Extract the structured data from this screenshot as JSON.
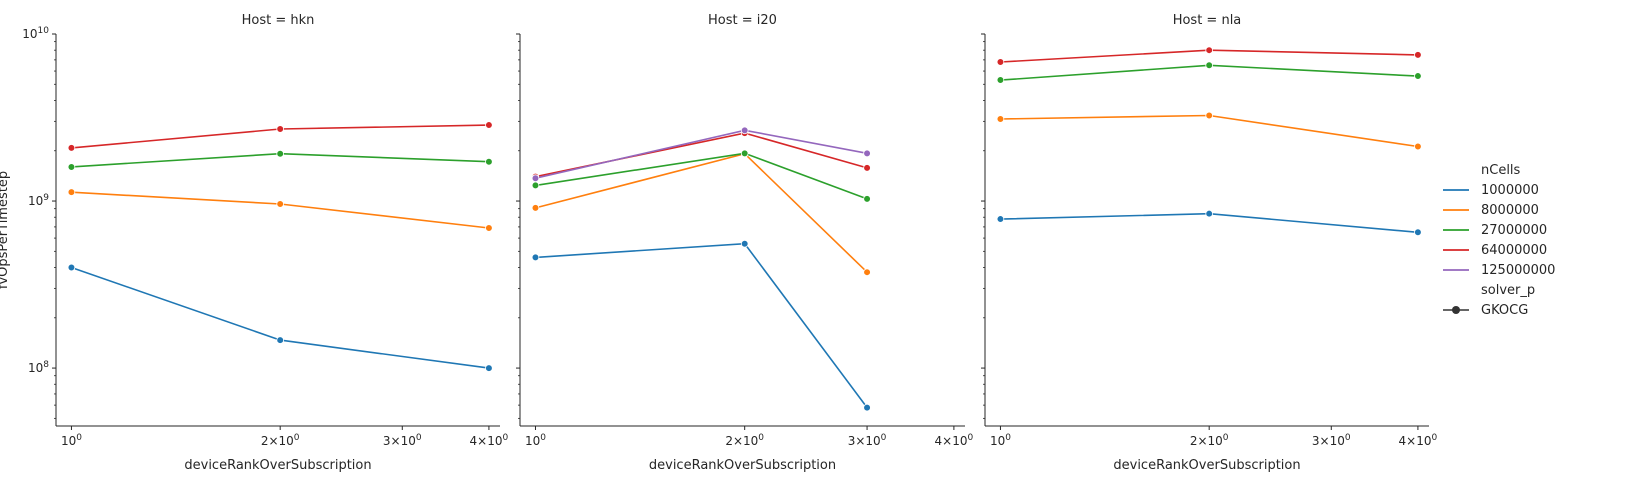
{
  "chart_data": {
    "type": "line",
    "scale": {
      "x": "log",
      "y": "log"
    },
    "xlabel": "deviceRankOverSubscription",
    "ylabel": "fvOpsPerTimestep",
    "ylim": [
      45000000,
      10000000000
    ],
    "y_ticks": [
      {
        "value": 100000000,
        "base": "10",
        "exp": "8"
      },
      {
        "value": 1000000000,
        "base": "10",
        "exp": "9"
      },
      {
        "value": 10000000000,
        "base": "10",
        "exp": "10"
      }
    ],
    "x_ticks": [
      {
        "value": 1,
        "coef": "",
        "base": "10",
        "exp": "0"
      },
      {
        "value": 2,
        "coef": "2×",
        "base": "10",
        "exp": "0"
      },
      {
        "value": 3,
        "coef": "3×",
        "base": "10",
        "exp": "0"
      },
      {
        "value": 4,
        "coef": "4×",
        "base": "10",
        "exp": "0"
      }
    ],
    "legend": {
      "position": "right",
      "hue_title": "nCells",
      "style_title": "solver_p",
      "style_entries": [
        "GKOCG"
      ]
    },
    "series_styles": [
      {
        "name": "1000000",
        "color": "#1f77b4"
      },
      {
        "name": "8000000",
        "color": "#ff7f0e"
      },
      {
        "name": "27000000",
        "color": "#2ca02c"
      },
      {
        "name": "64000000",
        "color": "#d62728"
      },
      {
        "name": "125000000",
        "color": "#9467bd"
      }
    ],
    "panels": [
      {
        "title": "Host = hkn",
        "xlim": [
          0.95,
          4.15
        ],
        "x": [
          1,
          2,
          4
        ],
        "series": [
          {
            "name": "1000000",
            "values": [
              400000000,
              147000000,
              100000000
            ]
          },
          {
            "name": "8000000",
            "values": [
              1130000000,
              960000000,
              690000000
            ]
          },
          {
            "name": "27000000",
            "values": [
              1600000000,
              1920000000,
              1720000000
            ]
          },
          {
            "name": "64000000",
            "values": [
              2080000000,
              2700000000,
              2850000000
            ]
          }
        ]
      },
      {
        "title": "Host = i20",
        "xlim": [
          0.95,
          4.15
        ],
        "x": [
          1,
          2,
          3
        ],
        "series": [
          {
            "name": "1000000",
            "values": [
              460000000,
              555000000,
              58000000
            ]
          },
          {
            "name": "8000000",
            "values": [
              910000000,
              1920000000,
              375000000
            ]
          },
          {
            "name": "27000000",
            "values": [
              1240000000,
              1930000000,
              1030000000
            ]
          },
          {
            "name": "64000000",
            "values": [
              1400000000,
              2550000000,
              1580000000
            ]
          },
          {
            "name": "125000000",
            "values": [
              1370000000,
              2650000000,
              1930000000
            ]
          }
        ]
      },
      {
        "title": "Host = nla",
        "xlim": [
          0.95,
          4.15
        ],
        "x": [
          1,
          2,
          4
        ],
        "series": [
          {
            "name": "1000000",
            "values": [
              780000000,
              840000000,
              650000000
            ]
          },
          {
            "name": "8000000",
            "values": [
              3100000000,
              3250000000,
              2120000000
            ]
          },
          {
            "name": "27000000",
            "values": [
              5300000000,
              6500000000,
              5600000000
            ]
          },
          {
            "name": "64000000",
            "values": [
              6800000000,
              8000000000,
              7500000000
            ]
          }
        ]
      }
    ]
  }
}
